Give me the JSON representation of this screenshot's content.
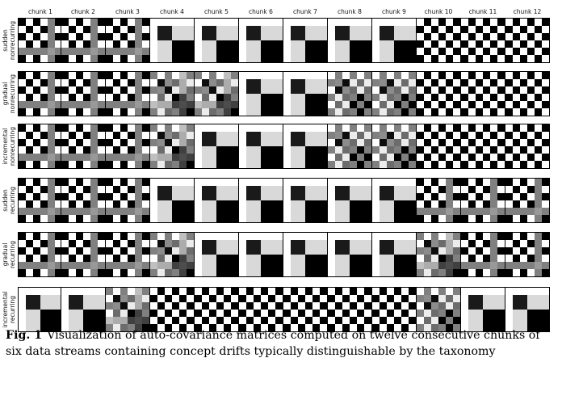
{
  "figure": {
    "columns": [
      "chunk 1",
      "chunk 2",
      "chunk 3",
      "chunk 4",
      "chunk 5",
      "chunk 6",
      "chunk 7",
      "chunk 8",
      "chunk 9",
      "chunk 10",
      "chunk 11",
      "chunk 12"
    ],
    "rows": [
      {
        "line1": "sudden",
        "line2": "nonrecurring",
        "patterns": [
          "A",
          "A",
          "A",
          "B",
          "B",
          "B",
          "B",
          "B",
          "B",
          "C",
          "C",
          "C"
        ]
      },
      {
        "line1": "gradual",
        "line2": "nonrecurring",
        "patterns": [
          "A",
          "A",
          "A",
          "AB",
          "AB",
          "B",
          "B",
          "BC",
          "BC",
          "C",
          "C",
          "C"
        ]
      },
      {
        "line1": "incremental",
        "line2": "nonrecurring",
        "patterns": [
          "A",
          "A",
          "A",
          "AB",
          "B",
          "B",
          "B",
          "BC",
          "BC",
          "C",
          "C",
          "C"
        ]
      },
      {
        "line1": "sudden",
        "line2": "recurring",
        "patterns": [
          "A",
          "A",
          "A",
          "B",
          "B",
          "B",
          "B",
          "B",
          "B",
          "A",
          "A",
          "A"
        ]
      },
      {
        "line1": "gradual",
        "line2": "recurring",
        "patterns": [
          "A",
          "A",
          "A",
          "AB",
          "B",
          "B",
          "B",
          "B",
          "B",
          "AB",
          "A",
          "A"
        ]
      },
      {
        "line1": "incremental",
        "line2": "recurring",
        "patterns": [
          "B",
          "B",
          "AB",
          "C",
          "C",
          "C",
          "C",
          "C",
          "C",
          "CB",
          "B",
          "B"
        ]
      }
    ]
  },
  "caption": {
    "label": "Fig. 1",
    "text": "Visualization of auto-covariance matrices computed on twelve consecutive chunks of six data streams containing concept drifts typically distinguishable by the taxonomy"
  }
}
